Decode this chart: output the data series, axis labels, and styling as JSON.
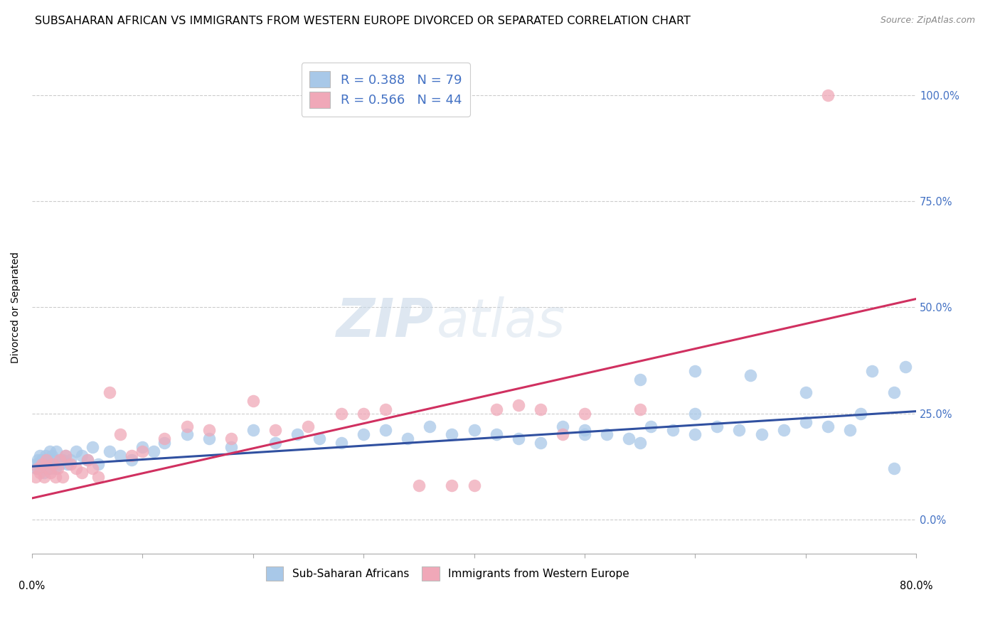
{
  "title": "SUBSAHARAN AFRICAN VS IMMIGRANTS FROM WESTERN EUROPE DIVORCED OR SEPARATED CORRELATION CHART",
  "source": "Source: ZipAtlas.com",
  "ylabel": "Divorced or Separated",
  "xlim": [
    0.0,
    80.0
  ],
  "ylim": [
    -8.0,
    108.0
  ],
  "yticks": [
    0,
    25,
    50,
    75,
    100
  ],
  "ytick_labels": [
    "0.0%",
    "25.0%",
    "50.0%",
    "75.0%",
    "100.0%"
  ],
  "blue_color": "#A8C8E8",
  "pink_color": "#F0A8B8",
  "blue_line_color": "#3050A0",
  "pink_line_color": "#D03060",
  "background_color": "#ffffff",
  "grid_color": "#cccccc",
  "title_fontsize": 11.5,
  "axis_label_fontsize": 10,
  "tick_fontsize": 10.5,
  "blue_x": [
    0.3,
    0.4,
    0.5,
    0.6,
    0.7,
    0.8,
    0.9,
    1.0,
    1.1,
    1.2,
    1.3,
    1.4,
    1.5,
    1.6,
    1.7,
    1.8,
    1.9,
    2.0,
    2.1,
    2.2,
    2.5,
    2.8,
    3.0,
    3.2,
    3.5,
    4.0,
    4.5,
    5.0,
    5.5,
    6.0,
    7.0,
    8.0,
    9.0,
    10.0,
    11.0,
    12.0,
    14.0,
    16.0,
    18.0,
    20.0,
    22.0,
    24.0,
    26.0,
    28.0,
    30.0,
    32.0,
    34.0,
    36.0,
    38.0,
    40.0,
    42.0,
    44.0,
    46.0,
    48.0,
    50.0,
    52.0,
    54.0,
    56.0,
    58.0,
    60.0,
    62.0,
    64.0,
    66.0,
    68.0,
    70.0,
    72.0,
    74.0,
    76.0,
    78.0,
    79.0,
    55.0,
    60.0,
    65.0,
    70.0,
    75.0,
    78.0,
    50.0,
    55.0,
    60.0
  ],
  "blue_y": [
    13,
    12,
    14,
    13,
    15,
    12,
    14,
    13,
    11,
    15,
    12,
    14,
    13,
    16,
    12,
    15,
    13,
    14,
    12,
    16,
    13,
    14,
    15,
    13,
    14,
    16,
    15,
    14,
    17,
    13,
    16,
    15,
    14,
    17,
    16,
    18,
    20,
    19,
    17,
    21,
    18,
    20,
    19,
    18,
    20,
    21,
    19,
    22,
    20,
    21,
    20,
    19,
    18,
    22,
    21,
    20,
    19,
    22,
    21,
    20,
    22,
    21,
    20,
    21,
    23,
    22,
    21,
    35,
    12,
    36,
    33,
    35,
    34,
    30,
    25,
    30,
    20,
    18,
    25
  ],
  "pink_x": [
    0.3,
    0.5,
    0.7,
    0.9,
    1.1,
    1.3,
    1.5,
    1.7,
    1.9,
    2.1,
    2.3,
    2.5,
    2.8,
    3.0,
    3.5,
    4.0,
    4.5,
    5.0,
    5.5,
    6.0,
    7.0,
    8.0,
    9.0,
    10.0,
    12.0,
    14.0,
    16.0,
    18.0,
    20.0,
    22.0,
    25.0,
    28.0,
    30.0,
    32.0,
    35.0,
    38.0,
    40.0,
    42.0,
    44.0,
    46.0,
    48.0,
    50.0,
    55.0,
    72.0
  ],
  "pink_y": [
    10,
    12,
    11,
    13,
    10,
    14,
    12,
    11,
    13,
    10,
    12,
    14,
    10,
    15,
    13,
    12,
    11,
    14,
    12,
    10,
    30,
    20,
    15,
    16,
    19,
    22,
    21,
    19,
    28,
    21,
    22,
    25,
    25,
    26,
    8,
    8,
    8,
    26,
    27,
    26,
    20,
    25,
    26,
    100
  ],
  "blue_line_x0": 0,
  "blue_line_y0": 12.5,
  "blue_line_x1": 80,
  "blue_line_y1": 25.5,
  "pink_line_x0": 0,
  "pink_line_y0": 5.0,
  "pink_line_x1": 80,
  "pink_line_y1": 52.0
}
